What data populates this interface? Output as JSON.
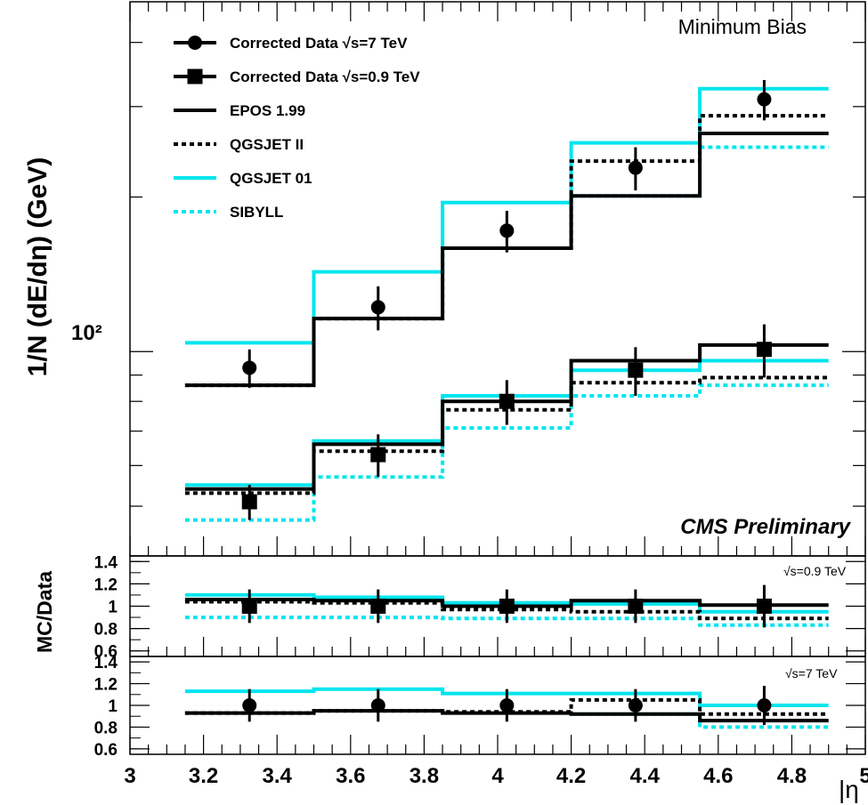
{
  "chart_data": {
    "type": "step",
    "title": "Minimum Bias",
    "annotation": "CMS Preliminary",
    "xlabel": "|η",
    "ylabel": "1/N (dE/dη) (GeV)",
    "y_scale": "log",
    "xlim": [
      3.0,
      5.0
    ],
    "ylim_main": [
      40,
      480
    ],
    "bin_edges": [
      3.15,
      3.5,
      3.85,
      4.2,
      4.55,
      4.9
    ],
    "x_ticks": [
      "3",
      "3.2",
      "3.4",
      "3.6",
      "3.8",
      "4",
      "4.2",
      "4.4",
      "4.6",
      "4.8",
      "5"
    ],
    "y_tick_label": "10²",
    "legend": [
      {
        "key": "data7",
        "label": "Corrected Data √s=7 TeV",
        "style": "circle-line",
        "color": "#000000"
      },
      {
        "key": "data09",
        "label": "Corrected Data √s=0.9 TeV",
        "style": "square-line",
        "color": "#000000"
      },
      {
        "key": "epos",
        "label": "EPOS 1.99",
        "style": "solid",
        "color": "#000000"
      },
      {
        "key": "qgsjet2",
        "label": "QGSJET II",
        "style": "dotted",
        "color": "#000000"
      },
      {
        "key": "qgsjet01",
        "label": "QGSJET 01",
        "style": "solid",
        "color": "#00e5ee"
      },
      {
        "key": "sibyll",
        "label": "SIBYLL",
        "style": "dotted",
        "color": "#00e5ee"
      }
    ],
    "data": {
      "data7": {
        "x": [
          3.325,
          3.675,
          4.025,
          4.375,
          4.725
        ],
        "y": [
          93,
          122,
          172,
          228,
          310
        ],
        "err_lo": [
          8,
          12,
          16,
          22,
          28
        ],
        "err_hi": [
          8,
          12,
          16,
          22,
          28
        ]
      },
      "data09": {
        "x": [
          3.325,
          3.675,
          4.025,
          4.375,
          4.725
        ],
        "y": [
          51,
          63,
          80,
          92,
          101
        ],
        "err_lo": [
          4,
          6,
          8,
          10,
          12
        ],
        "err_hi": [
          4,
          6,
          8,
          10,
          12
        ]
      }
    },
    "mc_7tev": {
      "epos": [
        86,
        116,
        159,
        201,
        266
      ],
      "qgsjet2": [
        86,
        116,
        159,
        235,
        288
      ],
      "qgsjet01": [
        104,
        143,
        195,
        255,
        325
      ],
      "sibyll": [
        86,
        116,
        159,
        201,
        250
      ]
    },
    "mc_09tev": {
      "epos": [
        54,
        66,
        80,
        96,
        103
      ],
      "qgsjet2": [
        53,
        64,
        77,
        87,
        89
      ],
      "qgsjet01": [
        55,
        67,
        82,
        92,
        96
      ],
      "sibyll": [
        47,
        57,
        71,
        82,
        86
      ]
    },
    "ratio_panels": [
      {
        "name": "√s=0.9 TeV",
        "ylabel": "MC/Data",
        "ylim": [
          0.55,
          1.45
        ],
        "y_ticks": [
          "1.4",
          "1.2",
          "1",
          "0.8",
          "0.6"
        ],
        "data_y": [
          1,
          1,
          1,
          1,
          1
        ],
        "data_err": [
          0.15,
          0.15,
          0.15,
          0.15,
          0.19
        ],
        "epos": [
          1.06,
          1.05,
          1.0,
          1.05,
          1.01
        ],
        "qgsjet2": [
          1.04,
          1.03,
          0.97,
          0.95,
          0.89
        ],
        "qgsjet01": [
          1.1,
          1.08,
          1.03,
          1.02,
          0.95
        ],
        "sibyll": [
          0.9,
          0.9,
          0.89,
          0.89,
          0.83
        ]
      },
      {
        "name": "√s=7 TeV",
        "ylabel": "",
        "ylim": [
          0.55,
          1.45
        ],
        "y_ticks": [
          "1.4",
          "1.2",
          "1",
          "0.8",
          "0.6"
        ],
        "data_y": [
          1,
          1,
          1,
          1,
          1
        ],
        "data_err": [
          0.15,
          0.15,
          0.15,
          0.15,
          0.18
        ],
        "epos": [
          0.93,
          0.95,
          0.93,
          0.92,
          0.86
        ],
        "qgsjet2": [
          0.93,
          0.95,
          0.94,
          1.05,
          0.92
        ],
        "qgsjet01": [
          1.13,
          1.15,
          1.11,
          1.11,
          1.0
        ],
        "sibyll": [
          0.93,
          0.95,
          0.93,
          0.92,
          0.8
        ]
      }
    ]
  }
}
